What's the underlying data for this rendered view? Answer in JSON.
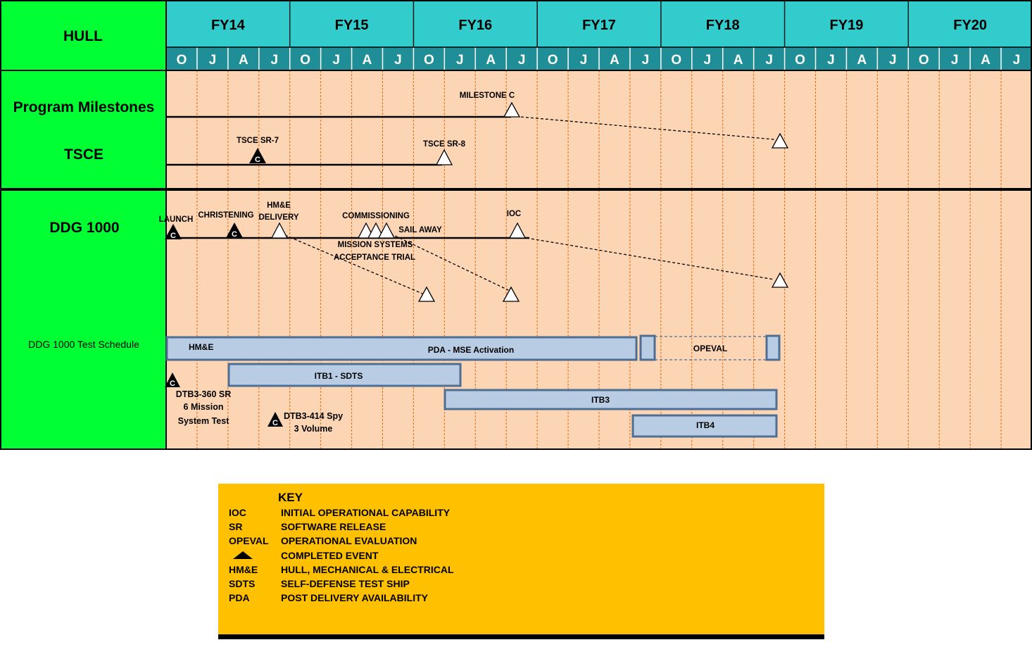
{
  "header": {
    "hull_label": "HULL",
    "fiscal_years": [
      "FY14",
      "FY15",
      "FY16",
      "FY17",
      "FY18",
      "FY19",
      "FY20"
    ],
    "quarter_letters": [
      "O",
      "J",
      "A",
      "J",
      "O",
      "J",
      "A",
      "J",
      "O",
      "J",
      "A",
      "J",
      "O",
      "J",
      "A",
      "J",
      "O",
      "J",
      "A",
      "J",
      "O",
      "J",
      "A",
      "J",
      "O",
      "J",
      "A",
      "J"
    ]
  },
  "rows": {
    "program_milestones": "Program Milestones",
    "tsce": "TSCE",
    "ddg1000": "DDG 1000",
    "test_schedule": "DDG 1000 Test Schedule"
  },
  "milestones": {
    "milestone_c": "MILESTONE  C",
    "tsce_sr7": "TSCE  SR-7",
    "tsce_sr8": "TSCE  SR-8",
    "launch": "LAUNCH",
    "christening": "CHRISTENING",
    "hme_delivery_1": "HM&E",
    "hme_delivery_2": "DELIVERY",
    "commissioning": "COMMISSIONING",
    "sail_away": "SAIL   AWAY",
    "ioc": "IOC",
    "mission_systems_1": "MISSION   SYSTEMS",
    "mission_systems_2": "ACCEPTANCE   TRIAL",
    "completed_marker": "C"
  },
  "bars": {
    "hme": "HM&E",
    "pda_mse": "PDA - MSE Activation",
    "opeval": "OPEVAL",
    "itb1": "ITB1  - SDTS",
    "itb3": "ITB3",
    "itb4": "ITB4"
  },
  "tests": {
    "dtb3_360_1": "DTB3-360 SR",
    "dtb3_360_2": "6 Mission",
    "dtb3_360_3": "System Test",
    "dtb3_414_1": "DTB3-414 Spy",
    "dtb3_414_2": "3 Volume"
  },
  "key": {
    "title": "KEY",
    "entries": [
      {
        "abbr": "IOC",
        "definition": "INITIAL OPERATIONAL CAPABILITY"
      },
      {
        "abbr": "SR",
        "definition": "SOFTWARE RELEASE"
      },
      {
        "abbr": "OPEVAL",
        "definition": "OPERATIONAL EVALUATION"
      },
      {
        "abbr": "",
        "icon": "filled-triangle-icon",
        "definition": "COMPLETED EVENT"
      },
      {
        "abbr": "HM&E",
        "definition": "HULL, MECHANICAL & ELECTRICAL"
      },
      {
        "abbr": "SDTS",
        "definition": "SELF-DEFENSE TEST SHIP"
      },
      {
        "abbr": "PDA",
        "definition": "POST DELIVERY AVAILABILITY"
      }
    ]
  },
  "colors": {
    "label_green": "#00ff33",
    "header_teal": "#33cccc",
    "chart_peach": "#fcd5b4",
    "grid_orange": "#e46c0a",
    "bar_fill": "#b8cce4",
    "bar_border": "#4f6e94",
    "key_gold": "#ffc000"
  }
}
